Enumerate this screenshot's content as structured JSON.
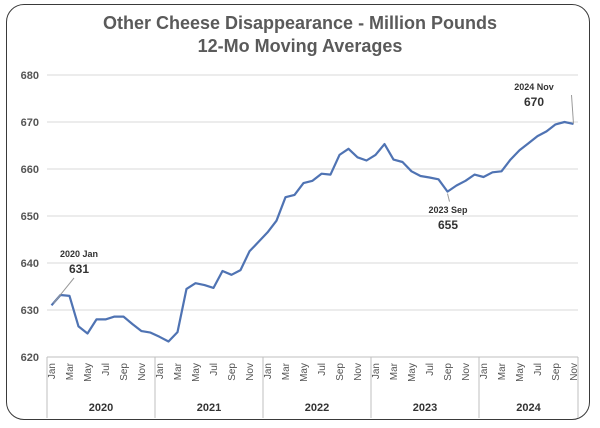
{
  "chart_data": {
    "type": "line",
    "title": "Other Cheese Disappearance - Million Pounds",
    "subtitle": "12-Mo Moving Averages",
    "ylim": [
      620,
      680
    ],
    "yticks": [
      620,
      630,
      640,
      650,
      660,
      670,
      680
    ],
    "grid": true,
    "month_labels": [
      "Jan",
      "Mar",
      "May",
      "Jul",
      "Sep",
      "Nov"
    ],
    "years": [
      "2020",
      "2021",
      "2022",
      "2023",
      "2024"
    ],
    "series": [
      {
        "color": "#4f73b3",
        "values": [
          631,
          633.2,
          633,
          626.5,
          625,
          628,
          628,
          628.6,
          628.6,
          627,
          625.5,
          625.2,
          624.3,
          623.3,
          625.3,
          634.5,
          635.7,
          635.3,
          634.7,
          638.3,
          637.5,
          638.5,
          642.5,
          644.5,
          646.5,
          649,
          654,
          654.5,
          657,
          657.5,
          659,
          658.8,
          663,
          664.3,
          662.5,
          661.8,
          663,
          665.3,
          662,
          661.5,
          659.5,
          658.5,
          658.2,
          657.8,
          655.2,
          656.5,
          657.5,
          658.8,
          658.3,
          659.3,
          659.5,
          662,
          664,
          665.5,
          667,
          668,
          669.5,
          670,
          669.6
        ]
      }
    ],
    "annotations": [
      {
        "date": "2020 Jan",
        "value": "631"
      },
      {
        "date": "2023 Sep",
        "value": "655"
      },
      {
        "date": "2024 Nov",
        "value": "670"
      }
    ]
  }
}
